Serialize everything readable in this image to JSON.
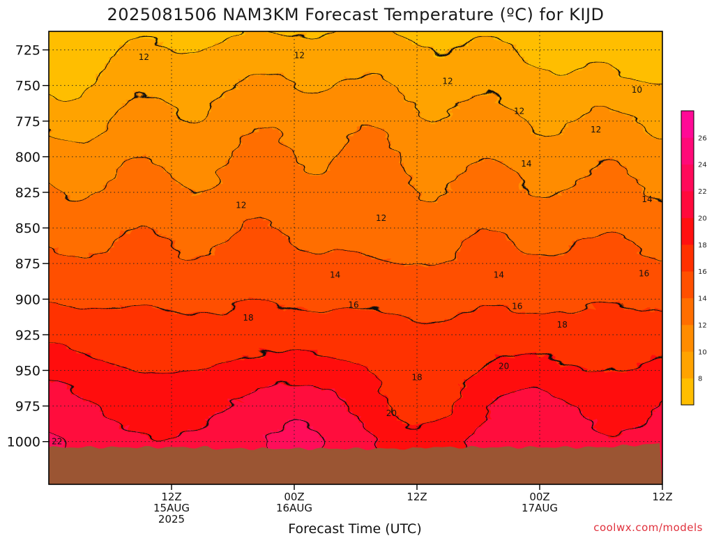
{
  "chart_data": {
    "type": "heatmap",
    "title": "2025081506 NAM3KM Forecast Temperature (ºC) for KIJD",
    "xlabel": "Forecast Time (UTC)",
    "ylabel": "",
    "x_range_hours": [
      -6,
      54
    ],
    "y_range": [
      1030,
      712
    ],
    "y_axis_inverted": true,
    "y_ticks": [
      725,
      750,
      775,
      800,
      825,
      850,
      875,
      900,
      925,
      950,
      975,
      1000
    ],
    "x_ticks": [
      {
        "hour": 6,
        "lines": [
          "12Z",
          "15AUG",
          "2025"
        ]
      },
      {
        "hour": 18,
        "lines": [
          "00Z",
          "16AUG"
        ]
      },
      {
        "hour": 30,
        "lines": [
          "12Z"
        ]
      },
      {
        "hour": 42,
        "lines": [
          "00Z",
          "17AUG"
        ]
      },
      {
        "hour": 54,
        "lines": [
          "12Z"
        ]
      }
    ],
    "grid": "dotted",
    "legend_placement": "right",
    "colorbar": {
      "levels": [
        8,
        10,
        12,
        14,
        16,
        18,
        20,
        22,
        24,
        26
      ],
      "labels": [
        "8",
        "10",
        "12",
        "14",
        "16",
        "18",
        "20",
        "22",
        "24",
        "26"
      ],
      "colors": [
        "#ffbe00",
        "#ffa300",
        "#ff8c00",
        "#ff6e00",
        "#ff5000",
        "#ff3000",
        "#ff1010",
        "#ff0a3c",
        "#ff0a5a",
        "#ff0a78",
        "#ff0a96"
      ]
    },
    "contour_labels": [
      {
        "text": "12",
        "hour": 3.3,
        "p": 730
      },
      {
        "text": "12",
        "hour": 18.5,
        "p": 729
      },
      {
        "text": "12",
        "hour": 12.8,
        "p": 834
      },
      {
        "text": "12",
        "hour": 26.5,
        "p": 843
      },
      {
        "text": "12",
        "hour": 33.0,
        "p": 747
      },
      {
        "text": "12",
        "hour": 40.0,
        "p": 768
      },
      {
        "text": "12",
        "hour": 47.5,
        "p": 781
      },
      {
        "text": "10",
        "hour": 51.5,
        "p": 753
      },
      {
        "text": "14",
        "hour": 22.0,
        "p": 883
      },
      {
        "text": "14",
        "hour": 38.0,
        "p": 883
      },
      {
        "text": "14",
        "hour": 40.7,
        "p": 805
      },
      {
        "text": "14",
        "hour": 52.5,
        "p": 830
      },
      {
        "text": "16",
        "hour": 23.8,
        "p": 904
      },
      {
        "text": "16",
        "hour": 39.8,
        "p": 905
      },
      {
        "text": "16",
        "hour": 52.2,
        "p": 882
      },
      {
        "text": "18",
        "hour": 13.5,
        "p": 913
      },
      {
        "text": "18",
        "hour": 30.0,
        "p": 955
      },
      {
        "text": "18",
        "hour": 44.2,
        "p": 918
      },
      {
        "text": "20",
        "hour": 27.5,
        "p": 980
      },
      {
        "text": "20",
        "hour": 38.5,
        "p": 947
      },
      {
        "text": "22",
        "hour": -5.2,
        "p": 1000
      }
    ],
    "surface_pressure_approx": 1004,
    "surface_color": "#9b5533"
  },
  "credit": "coolwx.com/models"
}
